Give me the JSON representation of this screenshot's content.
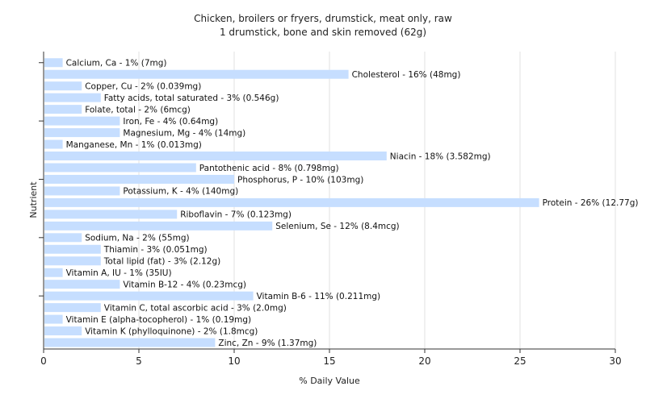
{
  "chart_data": {
    "type": "bar",
    "orientation": "horizontal",
    "title": "Chicken, broilers or fryers, drumstick, meat only, raw",
    "subtitle": "1 drumstick, bone and skin removed (62g)",
    "xlabel": "% Daily Value",
    "ylabel": "Nutrient",
    "xlim": [
      0,
      30
    ],
    "xticks": [
      0,
      5,
      10,
      15,
      20,
      25,
      30
    ],
    "grid": true,
    "bar_color": "#c6deff",
    "categories": [
      "Calcium, Ca",
      "Cholesterol",
      "Copper, Cu",
      "Fatty acids, total saturated",
      "Folate, total",
      "Iron, Fe",
      "Magnesium, Mg",
      "Manganese, Mn",
      "Niacin",
      "Pantothenic acid",
      "Phosphorus, P",
      "Potassium, K",
      "Protein",
      "Riboflavin",
      "Selenium, Se",
      "Sodium, Na",
      "Thiamin",
      "Total lipid (fat)",
      "Vitamin A, IU",
      "Vitamin B-12",
      "Vitamin B-6",
      "Vitamin C, total ascorbic acid",
      "Vitamin E (alpha-tocopherol)",
      "Vitamin K (phylloquinone)",
      "Zinc, Zn"
    ],
    "values": [
      1,
      16,
      2,
      3,
      2,
      4,
      4,
      1,
      18,
      8,
      10,
      4,
      26,
      7,
      12,
      2,
      3,
      3,
      1,
      4,
      11,
      3,
      1,
      2,
      9
    ],
    "labels": [
      "Calcium, Ca - 1% (7mg)",
      "Cholesterol - 16% (48mg)",
      "Copper, Cu - 2% (0.039mg)",
      "Fatty acids, total saturated - 3% (0.546g)",
      "Folate, total - 2% (6mcg)",
      "Iron, Fe - 4% (0.64mg)",
      "Magnesium, Mg - 4% (14mg)",
      "Manganese, Mn - 1% (0.013mg)",
      "Niacin - 18% (3.582mg)",
      "Pantothenic acid - 8% (0.798mg)",
      "Phosphorus, P - 10% (103mg)",
      "Potassium, K - 4% (140mg)",
      "Protein - 26% (12.77g)",
      "Riboflavin - 7% (0.123mg)",
      "Selenium, Se - 12% (8.4mcg)",
      "Sodium, Na - 2% (55mg)",
      "Thiamin - 3% (0.051mg)",
      "Total lipid (fat) - 3% (2.12g)",
      "Vitamin A, IU - 1% (35IU)",
      "Vitamin B-12 - 4% (0.23mcg)",
      "Vitamin B-6 - 11% (0.211mg)",
      "Vitamin C, total ascorbic acid - 3% (2.0mg)",
      "Vitamin E (alpha-tocopherol) - 1% (0.19mg)",
      "Vitamin K (phylloquinone) - 2% (1.8mcg)",
      "Zinc, Zn - 9% (1.37mg)"
    ]
  }
}
